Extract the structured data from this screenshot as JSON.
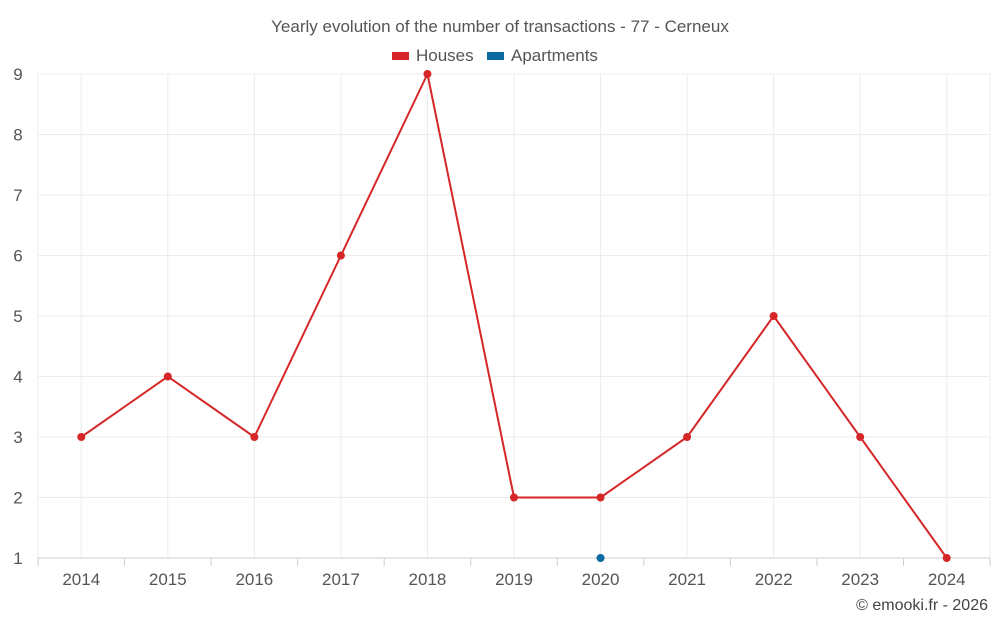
{
  "chart_data": {
    "type": "line",
    "title": "Yearly evolution of the number of transactions - 77 - Cerneux",
    "categories": [
      "2014",
      "2015",
      "2016",
      "2017",
      "2018",
      "2019",
      "2020",
      "2021",
      "2022",
      "2023",
      "2024"
    ],
    "ylim": [
      1,
      9
    ],
    "yticks": [
      1,
      2,
      3,
      4,
      5,
      6,
      7,
      8,
      9
    ],
    "grid": true,
    "legend_position": "top-center",
    "series": [
      {
        "name": "Houses",
        "color": "#d62728",
        "values": [
          3,
          4,
          3,
          6,
          9,
          2,
          2,
          3,
          5,
          3,
          1
        ]
      },
      {
        "name": "Apartments",
        "color": "#0a6aa1",
        "values": [
          null,
          null,
          null,
          null,
          null,
          null,
          1,
          null,
          null,
          null,
          null
        ]
      }
    ],
    "credit": "© emooki.fr - 2026"
  }
}
